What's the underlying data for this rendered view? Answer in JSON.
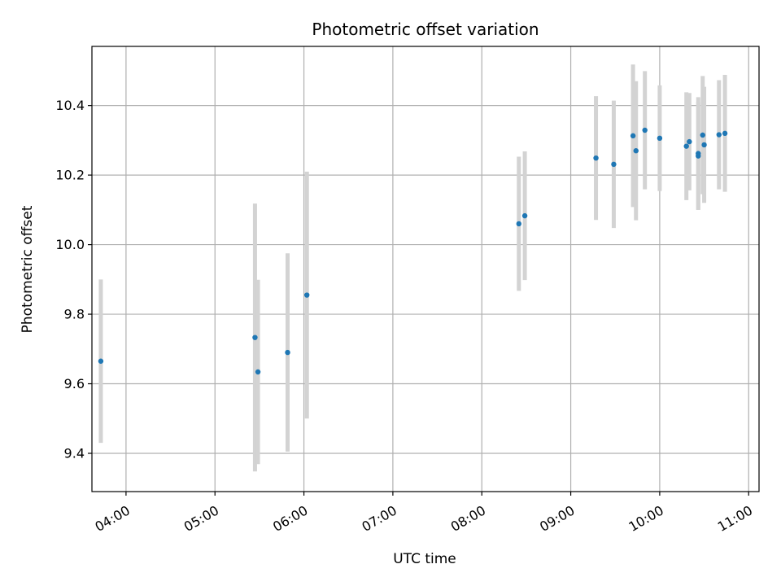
{
  "chart_data": {
    "type": "scatter",
    "title": "Photometric offset variation",
    "xlabel": "UTC time",
    "ylabel": "Photometric offset",
    "x_ticks": [
      "04:00",
      "05:00",
      "06:00",
      "07:00",
      "08:00",
      "09:00",
      "10:00",
      "11:00"
    ],
    "y_ticks": [
      "9.4",
      "9.6",
      "9.8",
      "10.0",
      "10.2",
      "10.4"
    ],
    "xlim": [
      "03:37",
      "11:07"
    ],
    "ylim": [
      9.29,
      10.57
    ],
    "grid": true,
    "colors": {
      "points": "#1f77b4",
      "error_bars": "#d3d3d3",
      "grid": "#b0b0b0"
    },
    "points": [
      {
        "x": "03:43",
        "y": 9.665,
        "yerr": 0.235
      },
      {
        "x": "05:27",
        "y": 9.733,
        "yerr": 0.385
      },
      {
        "x": "05:29",
        "y": 9.634,
        "yerr": 0.265
      },
      {
        "x": "05:49",
        "y": 9.69,
        "yerr": 0.285
      },
      {
        "x": "06:02",
        "y": 9.855,
        "yerr": 0.355
      },
      {
        "x": "08:25",
        "y": 10.06,
        "yerr": 0.193
      },
      {
        "x": "08:29",
        "y": 10.083,
        "yerr": 0.185
      },
      {
        "x": "09:17",
        "y": 10.249,
        "yerr": 0.178
      },
      {
        "x": "09:29",
        "y": 10.231,
        "yerr": 0.183
      },
      {
        "x": "09:42",
        "y": 10.313,
        "yerr": 0.205
      },
      {
        "x": "09:44",
        "y": 10.27,
        "yerr": 0.2
      },
      {
        "x": "09:50",
        "y": 10.329,
        "yerr": 0.17
      },
      {
        "x": "10:00",
        "y": 10.306,
        "yerr": 0.152
      },
      {
        "x": "10:18",
        "y": 10.283,
        "yerr": 0.155
      },
      {
        "x": "10:20",
        "y": 10.296,
        "yerr": 0.14
      },
      {
        "x": "10:26",
        "y": 10.262,
        "yerr": 0.162
      },
      {
        "x": "10:26",
        "y": 10.255,
        "yerr": 0.155
      },
      {
        "x": "10:29",
        "y": 10.315,
        "yerr": 0.17
      },
      {
        "x": "10:30",
        "y": 10.287,
        "yerr": 0.167
      },
      {
        "x": "10:40",
        "y": 10.316,
        "yerr": 0.157
      },
      {
        "x": "10:44",
        "y": 10.32,
        "yerr": 0.168
      }
    ]
  }
}
